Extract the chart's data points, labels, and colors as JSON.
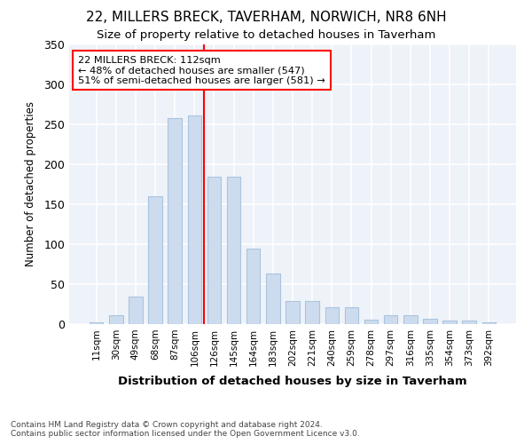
{
  "title1": "22, MILLERS BRECK, TAVERHAM, NORWICH, NR8 6NH",
  "title2": "Size of property relative to detached houses in Taverham",
  "xlabel": "Distribution of detached houses by size in Taverham",
  "ylabel": "Number of detached properties",
  "categories": [
    "11sqm",
    "30sqm",
    "49sqm",
    "68sqm",
    "87sqm",
    "106sqm",
    "126sqm",
    "145sqm",
    "164sqm",
    "183sqm",
    "202sqm",
    "221sqm",
    "240sqm",
    "259sqm",
    "278sqm",
    "297sqm",
    "316sqm",
    "335sqm",
    "354sqm",
    "373sqm",
    "392sqm"
  ],
  "values": [
    2,
    11,
    35,
    160,
    258,
    261,
    185,
    185,
    95,
    63,
    29,
    29,
    21,
    21,
    6,
    11,
    11,
    7,
    5,
    4,
    2
  ],
  "bar_color": "#ccdcee",
  "bar_edge_color": "#aac4de",
  "ref_line_color": "red",
  "annotation_text": "22 MILLERS BRECK: 112sqm\n← 48% of detached houses are smaller (547)\n51% of semi-detached houses are larger (581) →",
  "annotation_box_color": "white",
  "annotation_box_edge": "red",
  "footnote1": "Contains HM Land Registry data © Crown copyright and database right 2024.",
  "footnote2": "Contains public sector information licensed under the Open Government Licence v3.0.",
  "ylim": [
    0,
    350
  ],
  "yticks": [
    0,
    50,
    100,
    150,
    200,
    250,
    300,
    350
  ],
  "background_color": "#eef2f9",
  "grid_color": "white",
  "title1_fontsize": 11,
  "title2_fontsize": 9.5
}
